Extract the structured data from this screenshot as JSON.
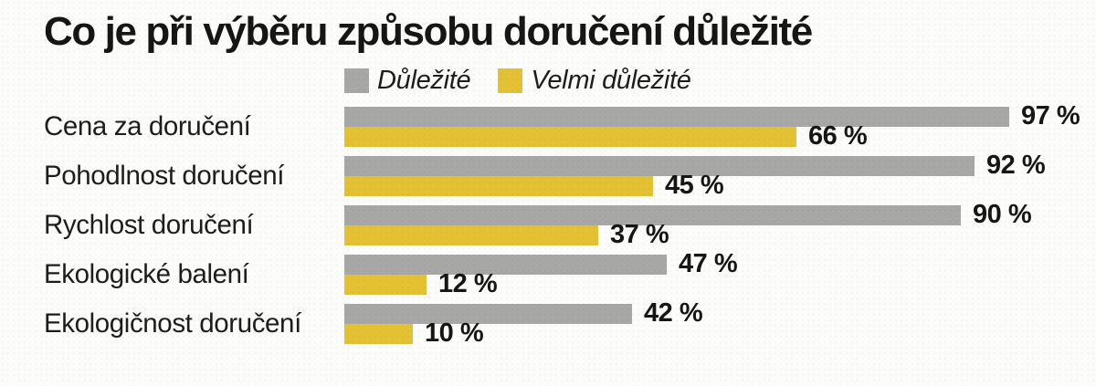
{
  "title": "Co je při výběru způsobu doručení důležité",
  "legend": [
    {
      "label": "Důležité",
      "color": "#a7a7a5"
    },
    {
      "label": "Velmi důležité",
      "color": "#e4c033"
    }
  ],
  "chart_data": {
    "type": "bar",
    "orientation": "horizontal",
    "title": "Co je při výběru způsobu doručení důležité",
    "categories": [
      "Cena za doručení",
      "Pohodlnost doručení",
      "Rychlost doručení",
      "Ekologické balení",
      "Ekologičnost doručení"
    ],
    "series": [
      {
        "name": "Důležité",
        "color": "#a7a7a5",
        "values": [
          97,
          92,
          90,
          47,
          42
        ]
      },
      {
        "name": "Velmi důležité",
        "color": "#e4c033",
        "values": [
          66,
          45,
          37,
          12,
          10
        ]
      }
    ],
    "value_suffix": " %",
    "xlim": [
      0,
      100
    ],
    "grid": false,
    "legend_position": "top"
  }
}
